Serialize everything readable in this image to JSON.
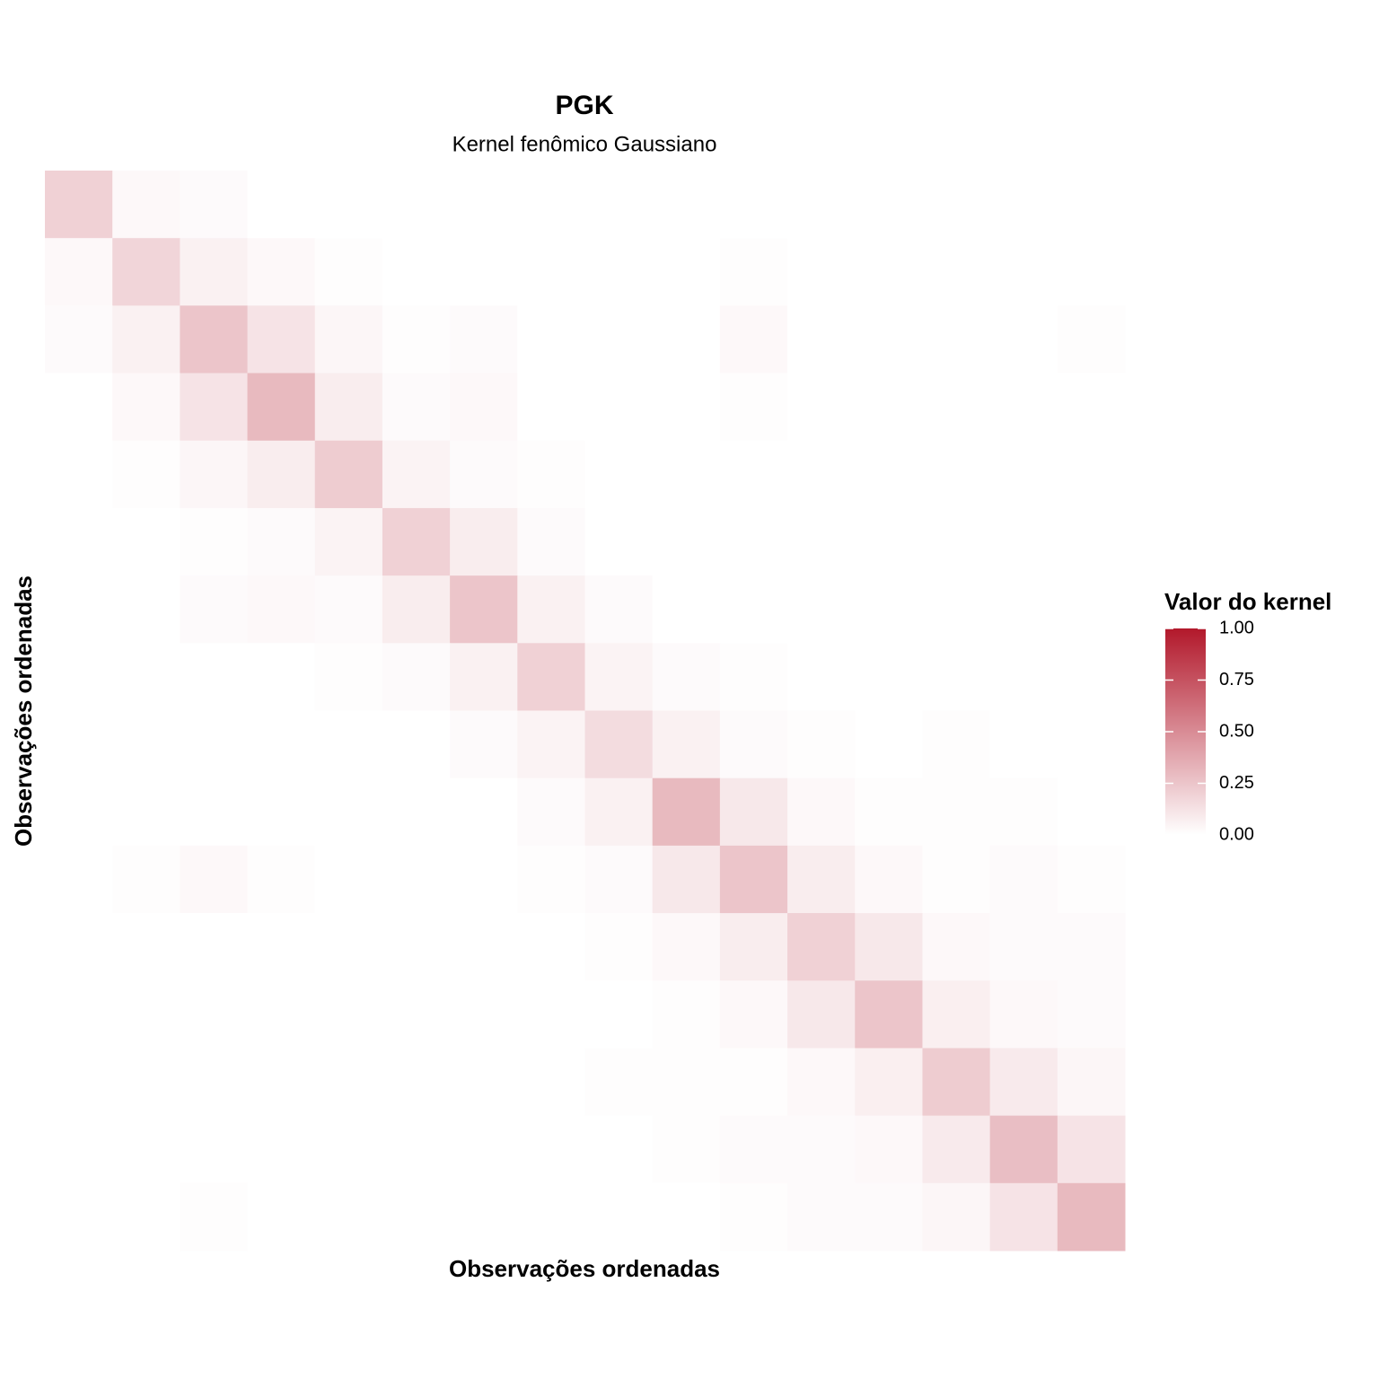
{
  "chart_data": {
    "type": "heatmap",
    "title": "PGK",
    "subtitle": "Kernel fenômico Gaussiano",
    "x_label": "Observações ordenadas",
    "y_label": "Observações ordenadas",
    "values": [
      [
        0.2,
        0.03,
        0.02,
        0,
        0,
        0,
        0,
        0,
        0,
        0,
        0,
        0,
        0,
        0,
        0,
        0
      ],
      [
        0.03,
        0.18,
        0.06,
        0.03,
        0.01,
        0,
        0,
        0,
        0,
        0,
        0.01,
        0,
        0,
        0,
        0,
        0
      ],
      [
        0.02,
        0.06,
        0.25,
        0.12,
        0.04,
        0.01,
        0.02,
        0,
        0,
        0,
        0.03,
        0,
        0,
        0,
        0,
        0.01
      ],
      [
        0,
        0.03,
        0.12,
        0.3,
        0.08,
        0.02,
        0.03,
        0,
        0,
        0,
        0.01,
        0,
        0,
        0,
        0,
        0
      ],
      [
        0,
        0.01,
        0.04,
        0.08,
        0.22,
        0.05,
        0.02,
        0.01,
        0,
        0,
        0,
        0,
        0,
        0,
        0,
        0
      ],
      [
        0,
        0,
        0.01,
        0.02,
        0.05,
        0.2,
        0.08,
        0.02,
        0,
        0,
        0,
        0,
        0,
        0,
        0,
        0
      ],
      [
        0,
        0,
        0.02,
        0.03,
        0.02,
        0.08,
        0.25,
        0.06,
        0.02,
        0,
        0,
        0,
        0,
        0,
        0,
        0
      ],
      [
        0,
        0,
        0,
        0,
        0.01,
        0.02,
        0.06,
        0.2,
        0.05,
        0.02,
        0.01,
        0,
        0,
        0,
        0,
        0
      ],
      [
        0,
        0,
        0,
        0,
        0,
        0,
        0.02,
        0.05,
        0.15,
        0.06,
        0.02,
        0.01,
        0,
        0.01,
        0,
        0
      ],
      [
        0,
        0,
        0,
        0,
        0,
        0,
        0,
        0.02,
        0.06,
        0.3,
        0.1,
        0.03,
        0.01,
        0.01,
        0.01,
        0
      ],
      [
        0,
        0.01,
        0.03,
        0.01,
        0,
        0,
        0,
        0.01,
        0.02,
        0.1,
        0.25,
        0.08,
        0.03,
        0.01,
        0.02,
        0.01
      ],
      [
        0,
        0,
        0,
        0,
        0,
        0,
        0,
        0,
        0.01,
        0.03,
        0.08,
        0.2,
        0.1,
        0.03,
        0.02,
        0.02
      ],
      [
        0,
        0,
        0,
        0,
        0,
        0,
        0,
        0,
        0,
        0.01,
        0.03,
        0.1,
        0.25,
        0.07,
        0.03,
        0.02
      ],
      [
        0,
        0,
        0,
        0,
        0,
        0,
        0,
        0,
        0.01,
        0.01,
        0.01,
        0.03,
        0.07,
        0.22,
        0.09,
        0.04
      ],
      [
        0,
        0,
        0,
        0,
        0,
        0,
        0,
        0,
        0,
        0.01,
        0.02,
        0.02,
        0.03,
        0.09,
        0.28,
        0.12
      ],
      [
        0,
        0,
        0.01,
        0,
        0,
        0,
        0,
        0,
        0,
        0,
        0.01,
        0.02,
        0.02,
        0.04,
        0.12,
        0.3
      ]
    ],
    "colorbar": {
      "title": "Valor do kernel",
      "lim": [
        0,
        1
      ],
      "low_color": "#ffffff",
      "high_color": "#b2182b",
      "ticks": [
        {
          "value": 0,
          "label": "0.00"
        },
        {
          "value": 0.25,
          "label": "0.25"
        },
        {
          "value": 0.5,
          "label": "0.50"
        },
        {
          "value": 0.75,
          "label": "0.75"
        },
        {
          "value": 1,
          "label": "1.00"
        }
      ]
    }
  }
}
